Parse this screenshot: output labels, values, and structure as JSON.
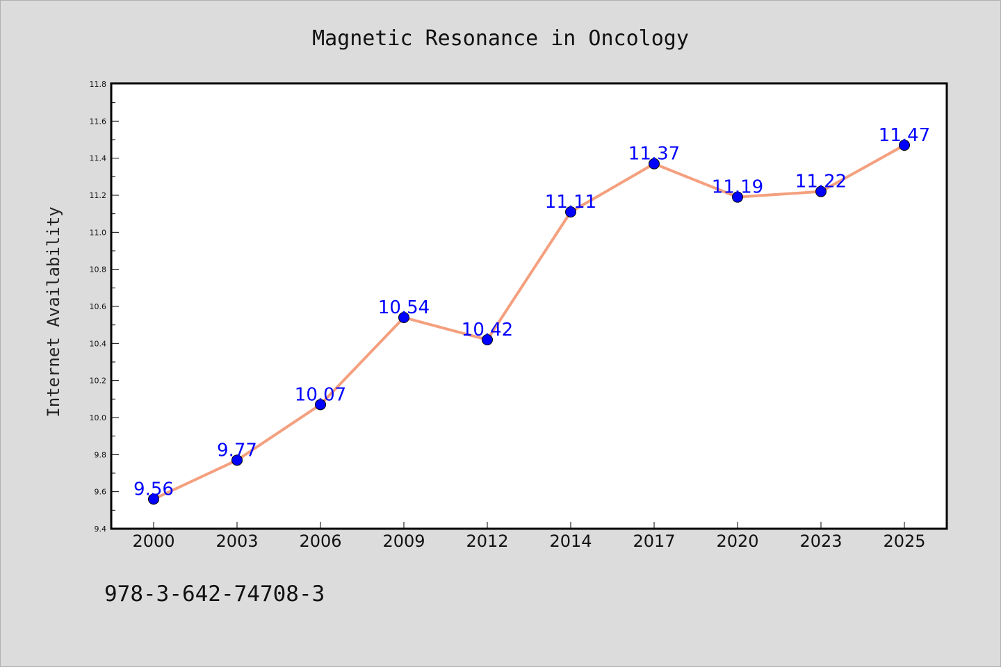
{
  "chart_data": {
    "type": "line",
    "title": "Magnetic Resonance in Oncology",
    "xlabel": "",
    "ylabel": "Internet Availability",
    "categories": [
      "2000",
      "2003",
      "2006",
      "2009",
      "2012",
      "2014",
      "2017",
      "2020",
      "2023",
      "2025"
    ],
    "series": [
      {
        "values": [
          9.56,
          9.77,
          10.07,
          10.54,
          10.42,
          11.11,
          11.37,
          11.19,
          11.22,
          11.47
        ],
        "labels": [
          "9.56",
          "9.77",
          "10.07",
          "10.54",
          "10.42",
          "11.11",
          "11.37",
          "11.19",
          "11.22",
          "11.47"
        ],
        "line_color": "#f4a07f",
        "marker_color": "#0000ff"
      }
    ],
    "ylim": [
      9.4,
      11.8
    ],
    "yticks": [
      "9.4",
      "9.6",
      "9.8",
      "10.0",
      "10.2",
      "10.4",
      "10.6",
      "10.8",
      "11.0",
      "11.2",
      "11.4",
      "11.6",
      "11.8"
    ],
    "grid": false,
    "legend": "none"
  },
  "footnote": "978-3-642-74708-3"
}
